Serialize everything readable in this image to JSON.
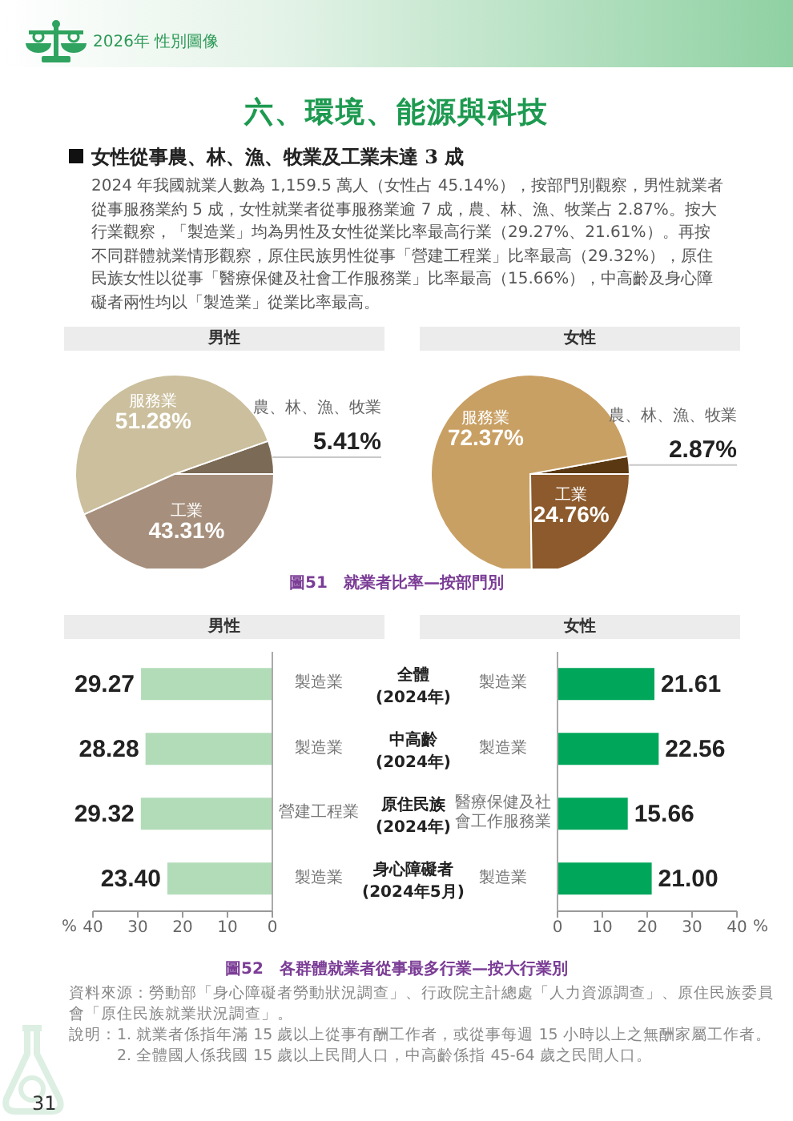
{
  "chart_data": [
    {
      "type": "pie",
      "title": "男性",
      "categories": [
        "農、林、漁、牧業",
        "服務業",
        "工業"
      ],
      "values": [
        5.41,
        51.28,
        43.31
      ],
      "colors": [
        "#7b6a55",
        "#cbbf9d",
        "#a68f7c"
      ],
      "value_labels": [
        "5.41%",
        "51.28%",
        "43.31%"
      ],
      "annotations": [
        "2026年 性別圖像",
        "六、環境、能源與科技",
        "女性從事農、林、漁、牧業及工業未達 3 成",
        "2024 年我國就業人數為 1,159.5 萬人（女性占 45.14%），按部門別觀察，男性就業者從事服務業約 5 成，女性就業者從事服務業逾 7 成，農、林、漁、牧業占 2.87%。按大行業觀察，「製造業」均為男性及女性從業比率最高行業（29.27%、21.61%）。再按不同群體就業情形觀察，原住民族男性從事「營建工程業」比率最高（29.32%），原住民族女性以從事「醫療保健及社會工作服務業」比率最高（15.66%），中高齡及身心障礙者兩性均以「製造業」從業比率最高。"
      ]
    },
    {
      "type": "pie",
      "title": "女性",
      "categories": [
        "農、林、漁、牧業",
        "服務業",
        "工業"
      ],
      "values": [
        2.87,
        72.37,
        24.76
      ],
      "colors": [
        "#5a3812",
        "#c9a064",
        "#8c5a2c"
      ],
      "value_labels": [
        "2.87%",
        "72.37%",
        "24.76%"
      ],
      "annotations": [
        "圖51　就業者比率—按部門別"
      ]
    },
    {
      "type": "bar",
      "orientation": "horizontal",
      "title": "男性",
      "categories": [
        "全體 (2024年)",
        "中高齡 (2024年)",
        "原住民族 (2024年)",
        "身心障礙者 (2024年5月)"
      ],
      "values": [
        29.27,
        28.28,
        29.32,
        23.4
      ],
      "color": "#b2dcb8",
      "value_labels": [
        "29.27",
        "28.28",
        "29.32",
        "23.40"
      ],
      "xlim": [
        40,
        0
      ],
      "xticks": [
        40,
        30,
        20,
        10,
        0
      ],
      "xlabel": "%",
      "annotations": [
        "製造業",
        "製造業",
        "營建工程業",
        "製造業"
      ]
    },
    {
      "type": "bar",
      "orientation": "horizontal",
      "title": "女性",
      "categories": [
        null,
        null,
        null,
        null
      ],
      "values": [
        21.61,
        22.56,
        15.66,
        21.0
      ],
      "color": "#00a65a",
      "value_labels": [
        "21.61",
        "22.56",
        "15.66",
        "21.00"
      ],
      "xlim": [
        0,
        40
      ],
      "xticks": [
        0,
        10,
        20,
        30,
        40
      ],
      "xlabel": "%",
      "annotations": [
        "製造業",
        "製造業",
        "醫療保健及社會工作服務業",
        "製造業",
        "圖52　各群體就業者從事最多行業—按大行業別",
        "資料來源：勞動部「身心障礙者勞動狀況調查」、行政院主計總處「人力資源調查」、原住民族委員會「原住民族就業狀況調查」。",
        "說明：1. 就業者係指年滿 15 歲以上從事有酬工作者，或從事每週 15 小時以上之無酬家屬工作者。",
        "2. 全體國人係我國 15 歲以上民間人口，中高齡係指 45-64 歲之民間人口。",
        "31"
      ]
    }
  ]
}
